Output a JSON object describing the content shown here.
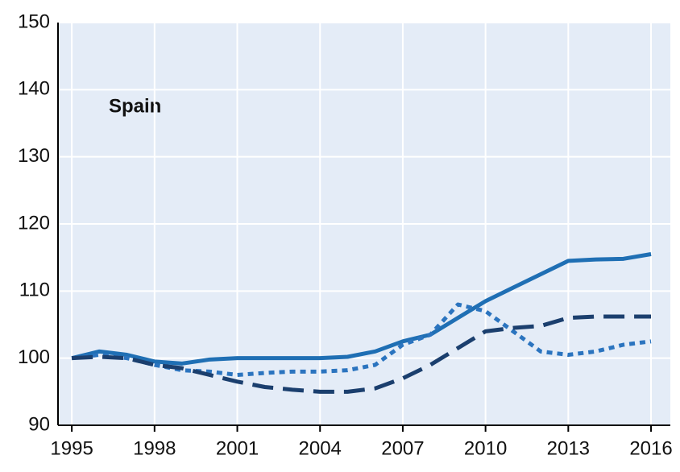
{
  "chart_data": {
    "type": "line",
    "annotation": "Spain",
    "x": [
      1995,
      1996,
      1997,
      1998,
      1999,
      2000,
      2001,
      2002,
      2003,
      2004,
      2005,
      2006,
      2007,
      2008,
      2009,
      2010,
      2011,
      2012,
      2013,
      2014,
      2015,
      2016
    ],
    "series": [
      {
        "color": "#1f6fb4",
        "dash": "solid",
        "values": [
          100,
          101,
          100.5,
          99.5,
          99.2,
          99.8,
          100,
          100,
          100,
          100,
          100.2,
          101,
          102.5,
          103.5,
          106,
          108.5,
          110.5,
          112.5,
          114.5,
          114.7,
          114.8,
          115.5
        ]
      },
      {
        "color": "#2b74bf",
        "dash": "dotted",
        "values": [
          100,
          100.5,
          100,
          99,
          98.2,
          98,
          97.5,
          97.8,
          98,
          98,
          98.2,
          99,
          102,
          103.5,
          108,
          107,
          104,
          101,
          100.5,
          101,
          102,
          102.5
        ]
      },
      {
        "color": "#1b3f6e",
        "dash": "dashed",
        "values": [
          100,
          100.2,
          100,
          99,
          98.5,
          97.5,
          96.5,
          95.7,
          95.3,
          95,
          95,
          95.5,
          97,
          99,
          101.5,
          104,
          104.5,
          104.8,
          106,
          106.2,
          106.2,
          106.2
        ]
      }
    ],
    "xlim": [
      1994.5,
      2016.7
    ],
    "xticks": [
      1995,
      1998,
      2001,
      2004,
      2007,
      2010,
      2013,
      2016
    ],
    "ylim": [
      90,
      150
    ],
    "yticks": [
      90,
      100,
      110,
      120,
      130,
      140,
      150
    ],
    "grid": true
  }
}
